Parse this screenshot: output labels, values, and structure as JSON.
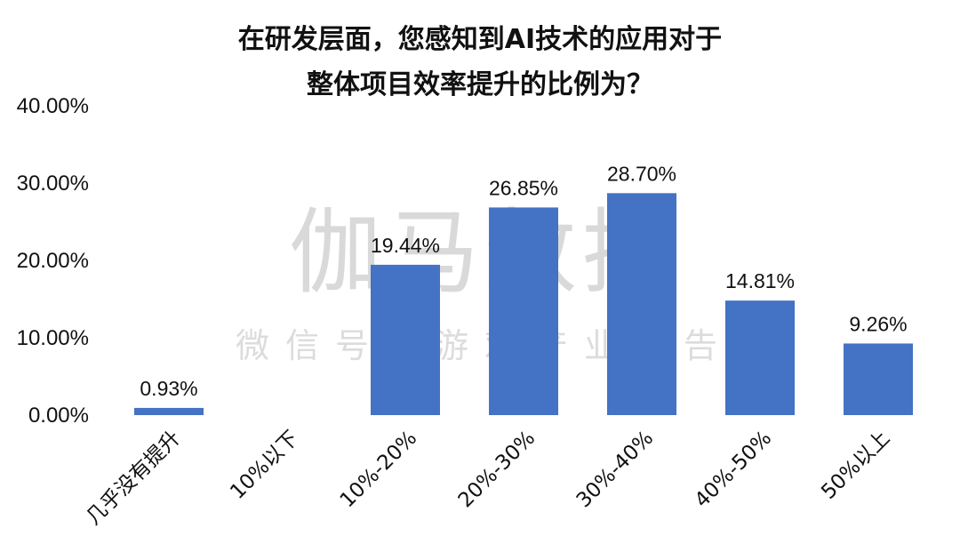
{
  "chart_data": {
    "type": "bar",
    "title_lines": [
      "在研发层面，您感知到AI技术的应用对于",
      "整体项目效率提升的比例为？"
    ],
    "categories": [
      "几乎没有提升",
      "10%以下",
      "10%-20%",
      "20%-30%",
      "30%-40%",
      "40%-50%",
      "50%以上"
    ],
    "values": [
      0.93,
      0,
      19.44,
      26.85,
      28.7,
      14.81,
      9.26
    ],
    "data_labels": [
      "0.93%",
      "",
      "19.44%",
      "26.85%",
      "28.70%",
      "14.81%",
      "9.26%"
    ],
    "y_ticks": [
      "0.00%",
      "10.00%",
      "20.00%",
      "30.00%",
      "40.00%"
    ],
    "ylim": [
      0,
      40
    ],
    "bar_color": "#4472C4",
    "grid": false,
    "legend": "none"
  },
  "watermark": {
    "main": "伽马数据",
    "sub": "微信号：游戏产业报告"
  }
}
